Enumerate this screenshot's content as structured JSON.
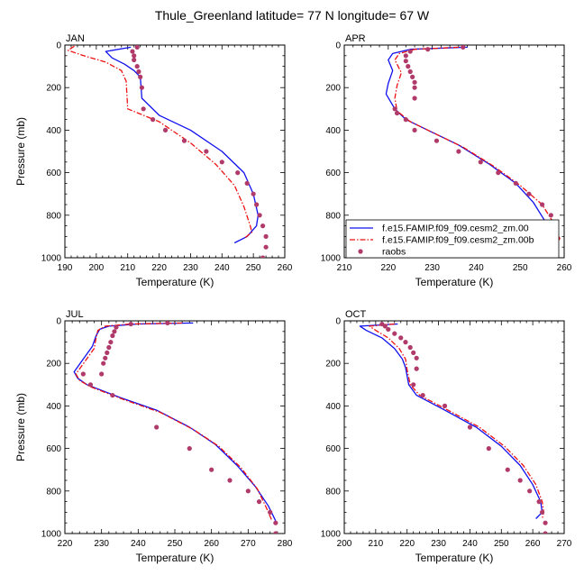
{
  "figure": {
    "title": "Thule_Greenland  latitude= 77 N longitude= 67 W"
  },
  "colors": {
    "series1": "#1010ee",
    "series2": "#ee1111",
    "raobs": "#b03a6a"
  },
  "legend": {
    "location": "bottom of APR panel",
    "entries": [
      {
        "label": "f.e15.FAMIP.f09_f09.cesm2_zm.00",
        "style": "solid"
      },
      {
        "label": "f.e15.FAMIP.f09_f09.cesm2_zm.00b",
        "style": "dashed"
      },
      {
        "label": "raobs",
        "style": "marker"
      }
    ]
  },
  "chart_data": [
    {
      "type": "line",
      "panel": "JAN",
      "xlabel": "Temperature (K)",
      "ylabel": "Pressure (mb)",
      "xlim": [
        190,
        260
      ],
      "ylim": [
        1000,
        0
      ],
      "xticks": [
        190,
        200,
        210,
        220,
        230,
        240,
        250,
        260
      ],
      "yticks": [
        0,
        200,
        400,
        600,
        800,
        1000
      ],
      "series": [
        {
          "name": "f.e15.FAMIP.f09_f09.cesm2_zm.00",
          "style": "solid",
          "x": [
            211,
            203,
            205,
            209,
            212,
            214,
            214.5,
            220,
            230,
            240,
            247,
            250,
            251.5,
            251,
            248,
            244
          ],
          "y": [
            10,
            30,
            60,
            90,
            120,
            150,
            250,
            330,
            400,
            500,
            600,
            700,
            800,
            850,
            900,
            930
          ]
        },
        {
          "name": "f.e15.FAMIP.f09_f09.cesm2_zm.00b",
          "style": "dashed",
          "x": [
            193,
            191,
            196,
            203,
            208,
            209.5,
            210,
            220,
            230,
            238,
            244,
            247,
            249,
            249.5,
            247
          ],
          "y": [
            5,
            25,
            50,
            80,
            120,
            170,
            300,
            360,
            460,
            560,
            660,
            760,
            850,
            880,
            910
          ]
        },
        {
          "name": "raobs",
          "style": "marker",
          "x": [
            213,
            211.5,
            212,
            212,
            213,
            213.5,
            214,
            214.5,
            215,
            218,
            222,
            228,
            235,
            240,
            245,
            248,
            250,
            251,
            252,
            253,
            254,
            254,
            253
          ],
          "y": [
            10,
            30,
            50,
            70,
            100,
            125,
            150,
            200,
            300,
            350,
            400,
            450,
            500,
            550,
            600,
            650,
            700,
            750,
            800,
            850,
            900,
            950,
            1000
          ]
        }
      ]
    },
    {
      "type": "line",
      "panel": "APR",
      "xlabel": "Temperature (K)",
      "ylabel": "",
      "xlim": [
        210,
        260
      ],
      "ylim": [
        1000,
        0
      ],
      "xticks": [
        210,
        220,
        230,
        240,
        250,
        260
      ],
      "yticks": [
        0,
        200,
        400,
        600,
        800,
        1000
      ],
      "series": [
        {
          "name": "f.e15.FAMIP.f09_f09.cesm2_zm.00",
          "style": "solid",
          "x": [
            238,
            225,
            221,
            220,
            221,
            220,
            219.5,
            221.5,
            224,
            229,
            236,
            243,
            249,
            253,
            256,
            257,
            257.5
          ],
          "y": [
            10,
            20,
            40,
            70,
            120,
            180,
            230,
            300,
            350,
            400,
            470,
            560,
            650,
            740,
            840,
            900,
            940
          ]
        },
        {
          "name": "f.e15.FAMIP.f09_f09.cesm2_zm.00b",
          "style": "dashed",
          "x": [
            236,
            226,
            222.5,
            221.5,
            223,
            222,
            221.5,
            222,
            225,
            230,
            237,
            244,
            250,
            255,
            258,
            259,
            257
          ],
          "y": [
            10,
            20,
            40,
            70,
            130,
            190,
            250,
            310,
            360,
            410,
            480,
            570,
            660,
            750,
            850,
            910,
            960
          ]
        },
        {
          "name": "raobs",
          "style": "marker",
          "x": [
            237,
            229,
            225,
            224,
            224,
            224.5,
            225,
            225.5,
            226,
            226,
            226,
            221.5,
            222,
            224,
            226,
            231,
            236,
            241,
            245,
            249,
            252,
            255,
            257,
            257.5,
            257.5,
            257
          ],
          "y": [
            10,
            20,
            30,
            50,
            75,
            100,
            125,
            150,
            175,
            200,
            250,
            300,
            320,
            350,
            400,
            450,
            500,
            550,
            600,
            650,
            700,
            750,
            800,
            850,
            900,
            1000
          ]
        }
      ]
    },
    {
      "type": "line",
      "panel": "JUL",
      "xlabel": "Temperature (K)",
      "ylabel": "Pressure (mb)",
      "xlim": [
        220,
        280
      ],
      "ylim": [
        1000,
        0
      ],
      "xticks": [
        220,
        230,
        240,
        250,
        260,
        270,
        280
      ],
      "yticks": [
        0,
        200,
        400,
        600,
        800,
        1000
      ],
      "series": [
        {
          "name": "f.e15.FAMIP.f09_f09.cesm2_zm.00",
          "style": "solid",
          "x": [
            255,
            240,
            232,
            229.5,
            228.5,
            227.5,
            225,
            222.5,
            223.5,
            226,
            235,
            245,
            254,
            261,
            267,
            272,
            275.5,
            277.5
          ],
          "y": [
            10,
            15,
            25,
            40,
            70,
            120,
            180,
            240,
            270,
            300,
            360,
            420,
            500,
            580,
            680,
            780,
            870,
            940
          ]
        },
        {
          "name": "f.e15.FAMIP.f09_f09.cesm2_zm.00b",
          "style": "dashed",
          "x": [
            252,
            238,
            231,
            229,
            228.5,
            228,
            225.5,
            223,
            224,
            227,
            236,
            246,
            255,
            262,
            268,
            272.5,
            275,
            276.5
          ],
          "y": [
            10,
            15,
            25,
            45,
            80,
            130,
            190,
            250,
            280,
            310,
            370,
            430,
            510,
            590,
            690,
            790,
            880,
            940
          ]
        },
        {
          "name": "raobs",
          "style": "marker",
          "x": [
            248,
            238,
            234,
            233.5,
            233,
            232.5,
            232,
            231.5,
            231,
            230.5,
            230,
            225,
            227,
            233,
            245,
            254,
            260,
            265,
            270,
            273,
            276,
            277.5,
            277.5
          ],
          "y": [
            10,
            15,
            30,
            50,
            70,
            100,
            125,
            150,
            175,
            200,
            250,
            250,
            300,
            350,
            500,
            600,
            700,
            750,
            800,
            850,
            900,
            950,
            1000
          ]
        }
      ]
    },
    {
      "type": "line",
      "panel": "OCT",
      "xlabel": "Temperature (K)",
      "ylabel": "",
      "xlim": [
        200,
        270
      ],
      "ylim": [
        1000,
        0
      ],
      "xticks": [
        200,
        210,
        220,
        230,
        240,
        250,
        260,
        270
      ],
      "yticks": [
        0,
        200,
        400,
        600,
        800,
        1000
      ],
      "series": [
        {
          "name": "f.e15.FAMIP.f09_f09.cesm2_zm.00",
          "style": "solid",
          "x": [
            217,
            205,
            207,
            212,
            216,
            218.5,
            219.5,
            220.5,
            223,
            232,
            242,
            250,
            256,
            260,
            262.5,
            263,
            261
          ],
          "y": [
            15,
            25,
            45,
            80,
            130,
            180,
            220,
            300,
            350,
            420,
            500,
            590,
            680,
            770,
            850,
            900,
            930
          ]
        },
        {
          "name": "f.e15.FAMIP.f09_f09.cesm2_zm.00b",
          "style": "dashed",
          "x": [
            216,
            208,
            210,
            214,
            217.5,
            219.5,
            220,
            221,
            224,
            233,
            243,
            251,
            257,
            261,
            263,
            263.5,
            263
          ],
          "y": [
            15,
            25,
            45,
            80,
            130,
            180,
            230,
            300,
            350,
            420,
            500,
            590,
            680,
            770,
            850,
            900,
            930
          ]
        },
        {
          "name": "raobs",
          "style": "marker",
          "x": [
            212,
            213,
            214,
            216,
            218,
            219.5,
            221,
            222,
            223,
            223,
            222,
            225,
            232,
            240,
            246,
            252,
            256,
            259,
            262,
            263,
            264,
            264
          ],
          "y": [
            15,
            25,
            40,
            60,
            80,
            100,
            125,
            150,
            175,
            225,
            300,
            350,
            400,
            500,
            600,
            700,
            750,
            800,
            850,
            900,
            950,
            1000
          ]
        }
      ]
    }
  ]
}
